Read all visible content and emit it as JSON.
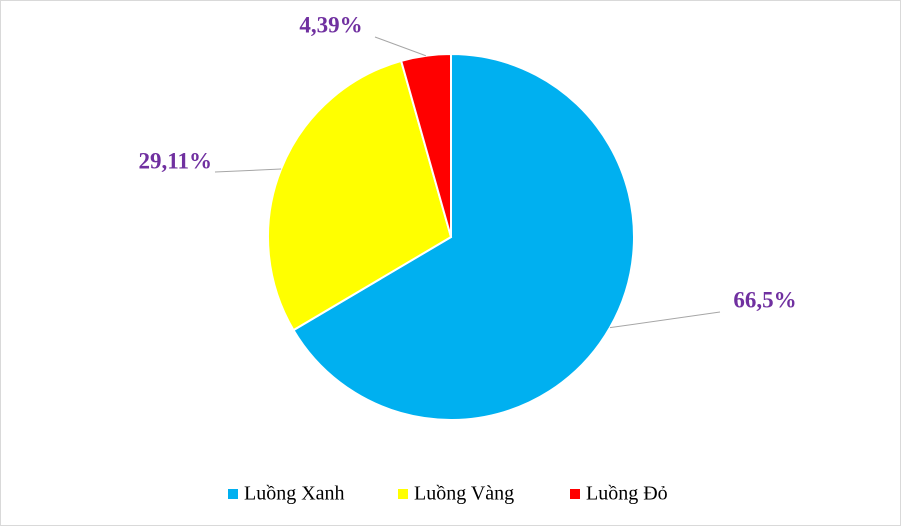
{
  "chart_data": {
    "type": "pie",
    "categories": [
      "Luồng Xanh",
      "Luồng Vàng",
      "Luồng Đỏ"
    ],
    "values": [
      66.5,
      29.11,
      4.39
    ],
    "value_labels": [
      "66,5%",
      "29,11%",
      "4,39%"
    ],
    "colors": [
      "#00b0f0",
      "#ffff00",
      "#ff0000"
    ]
  }
}
